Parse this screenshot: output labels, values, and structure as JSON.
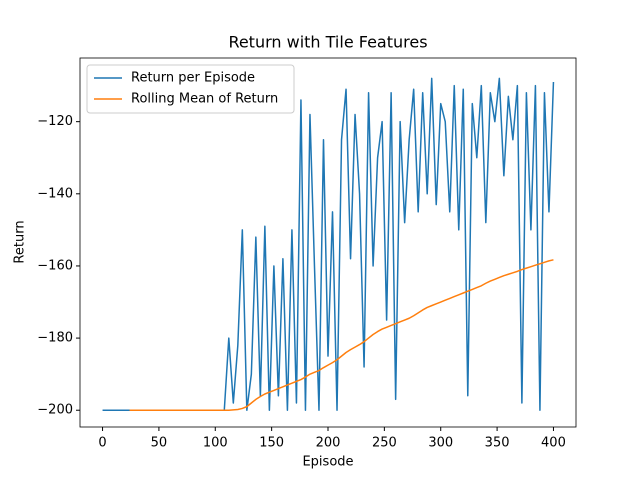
{
  "chart_data": {
    "type": "line",
    "title": "Return with Tile Features",
    "x_label": "Episode",
    "y_label": "Return",
    "x": [
      0,
      4,
      8,
      12,
      16,
      20,
      24,
      28,
      32,
      36,
      40,
      44,
      48,
      52,
      56,
      60,
      64,
      68,
      72,
      76,
      80,
      84,
      88,
      92,
      96,
      100,
      104,
      108,
      112,
      116,
      120,
      124,
      128,
      132,
      136,
      140,
      144,
      148,
      152,
      156,
      160,
      164,
      168,
      172,
      176,
      180,
      184,
      188,
      192,
      196,
      200,
      204,
      208,
      212,
      216,
      220,
      224,
      228,
      232,
      236,
      240,
      244,
      248,
      252,
      256,
      260,
      264,
      268,
      272,
      276,
      280,
      284,
      288,
      292,
      296,
      300,
      304,
      308,
      312,
      316,
      320,
      324,
      328,
      332,
      336,
      340,
      344,
      348,
      352,
      356,
      360,
      364,
      368,
      372,
      376,
      380,
      384,
      388,
      392,
      396,
      400
    ],
    "series": [
      {
        "name": "Return per Episode",
        "color": "#1f77b4",
        "values": [
          -200,
          -200,
          -200,
          -200,
          -200,
          -200,
          -200,
          -200,
          -200,
          -200,
          -200,
          -200,
          -200,
          -200,
          -200,
          -200,
          -200,
          -200,
          -200,
          -200,
          -200,
          -200,
          -200,
          -200,
          -200,
          -200,
          -200,
          -200,
          -180,
          -198,
          -182,
          -150,
          -200,
          -190,
          -152,
          -196,
          -149,
          -200,
          -160,
          -196,
          -158,
          -200,
          -150,
          -198,
          -114,
          -200,
          -118,
          -160,
          -200,
          -125,
          -185,
          -145,
          -200,
          -125,
          -111,
          -158,
          -118,
          -140,
          -188,
          -112,
          -160,
          -130,
          -120,
          -175,
          -112,
          -197,
          -120,
          -148,
          -125,
          -111,
          -145,
          -112,
          -140,
          -108,
          -143,
          -115,
          -120,
          -145,
          -110,
          -150,
          -111,
          -196,
          -115,
          -130,
          -110,
          -148,
          -112,
          -120,
          -108,
          -135,
          -113,
          -125,
          -110,
          -198,
          -112,
          -150,
          -110,
          -200,
          -112,
          -145,
          -109
        ]
      },
      {
        "name": "Rolling Mean of Return",
        "color": "#ff7f0e",
        "values": [
          null,
          null,
          null,
          null,
          null,
          null,
          -200,
          -200,
          -200,
          -200,
          -200,
          -200,
          -200,
          -200,
          -200,
          -200,
          -200,
          -200,
          -200,
          -200,
          -200,
          -200,
          -200,
          -200,
          -200,
          -200,
          -200,
          -200,
          -200,
          -199.9,
          -199.8,
          -199.5,
          -199,
          -198,
          -197,
          -196.2,
          -195.5,
          -195,
          -194.5,
          -194,
          -193.5,
          -193,
          -192.5,
          -192,
          -191.5,
          -190.8,
          -190,
          -189.5,
          -189,
          -188.2,
          -187.5,
          -186.8,
          -186,
          -185,
          -184,
          -183.2,
          -182.5,
          -181.8,
          -181,
          -180,
          -179,
          -178.2,
          -177.5,
          -177,
          -176.5,
          -176,
          -175.5,
          -175,
          -174.5,
          -173.8,
          -173,
          -172.2,
          -171.5,
          -171,
          -170.5,
          -170,
          -169.5,
          -169,
          -168.5,
          -168,
          -167.5,
          -167,
          -166.5,
          -166,
          -165.5,
          -164.8,
          -164.2,
          -163.7,
          -163.2,
          -162.7,
          -162.3,
          -161.9,
          -161.5,
          -161,
          -160.6,
          -160.2,
          -159.8,
          -159.4,
          -159,
          -158.6,
          -158.3
        ]
      }
    ],
    "xlim": [
      -20,
      420
    ],
    "ylim": [
      -204.65,
      -102.35
    ],
    "xticks": [
      0,
      50,
      100,
      150,
      200,
      250,
      300,
      350,
      400
    ],
    "yticks": [
      {
        "value": -200,
        "label": "−200"
      },
      {
        "value": -180,
        "label": "−180"
      },
      {
        "value": -160,
        "label": "−160"
      },
      {
        "value": -140,
        "label": "−140"
      },
      {
        "value": -120,
        "label": "−120"
      }
    ],
    "legend": "upper left"
  }
}
